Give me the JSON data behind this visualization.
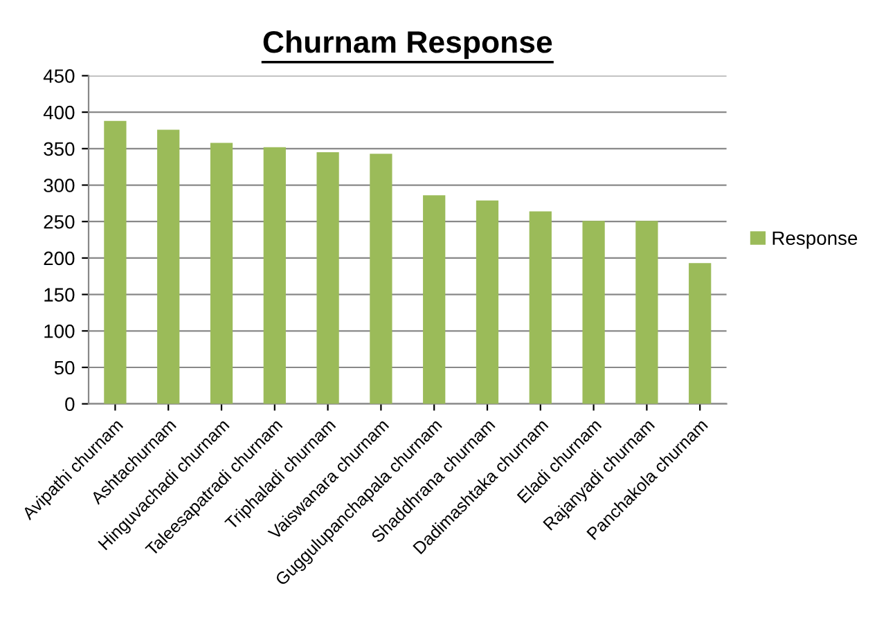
{
  "chart_data": {
    "type": "bar",
    "title": "Churnam Response",
    "categories": [
      "Avipathi churnam",
      "Ashtachurnam",
      "Hinguvachadi churnam",
      "Taleesapatradi churnam",
      "Triphaladi churnam",
      "Vaiswanara churnam",
      "Guggulupanchapala churnam",
      "Shaddhrana churnam",
      "Dadimashtaka churnam",
      "Eladi churnam",
      "Rajanyadi churnam",
      "Panchakola churnam"
    ],
    "series": [
      {
        "name": "Response",
        "color": "#9bbb59",
        "values": [
          388,
          376,
          358,
          352,
          345,
          343,
          286,
          279,
          264,
          251,
          251,
          193
        ]
      }
    ],
    "ylim": [
      0,
      450
    ],
    "yticks": [
      0,
      50,
      100,
      150,
      200,
      250,
      300,
      350,
      400,
      450
    ],
    "grid": "y",
    "legend": "right"
  }
}
